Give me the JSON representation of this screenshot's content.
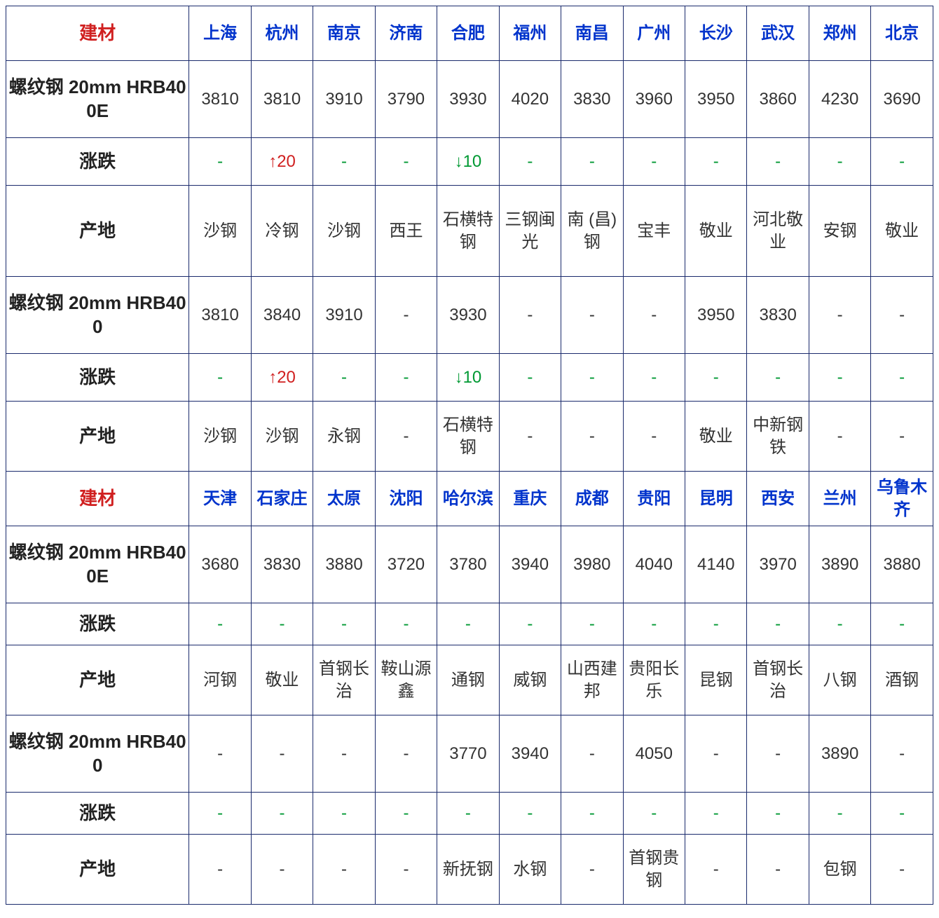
{
  "colors": {
    "border": "#1a2a6c",
    "header_label": "#d02020",
    "city": "#0033cc",
    "text": "#333333",
    "up": "#d02020",
    "down": "#009933",
    "dash": "#009933",
    "background": "#ffffff"
  },
  "header_label": "建材",
  "section1": {
    "cities": [
      "上海",
      "杭州",
      "南京",
      "济南",
      "合肥",
      "福州",
      "南昌",
      "广州",
      "长沙",
      "武汉",
      "郑州",
      "北京"
    ],
    "product1_label": "螺纹钢 20mm HRB400E",
    "product1_prices": [
      "3810",
      "3810",
      "3910",
      "3790",
      "3930",
      "4020",
      "3830",
      "3960",
      "3950",
      "3860",
      "4230",
      "3690"
    ],
    "change_label": "涨跌",
    "product1_changes": [
      {
        "t": "-",
        "c": "dash"
      },
      {
        "t": "↑20",
        "c": "up"
      },
      {
        "t": "-",
        "c": "dash"
      },
      {
        "t": "-",
        "c": "dash"
      },
      {
        "t": "↓10",
        "c": "down"
      },
      {
        "t": "-",
        "c": "dash"
      },
      {
        "t": "-",
        "c": "dash"
      },
      {
        "t": "-",
        "c": "dash"
      },
      {
        "t": "-",
        "c": "dash"
      },
      {
        "t": "-",
        "c": "dash"
      },
      {
        "t": "-",
        "c": "dash"
      },
      {
        "t": "-",
        "c": "dash"
      }
    ],
    "origin_label": "产地",
    "product1_origins": [
      "沙钢",
      "冷钢",
      "沙钢",
      "西王",
      "石横特钢",
      "三钢闽光",
      "南 (昌) 钢",
      "宝丰",
      "敬业",
      "河北敬业",
      "安钢",
      "敬业"
    ],
    "product2_label": "螺纹钢 20mm HRB400",
    "product2_prices": [
      "3810",
      "3840",
      "3910",
      "-",
      "3930",
      "-",
      "-",
      "-",
      "3950",
      "3830",
      "-",
      "-"
    ],
    "product2_changes": [
      {
        "t": "-",
        "c": "dash"
      },
      {
        "t": "↑20",
        "c": "up"
      },
      {
        "t": "-",
        "c": "dash"
      },
      {
        "t": "-",
        "c": "dash"
      },
      {
        "t": "↓10",
        "c": "down"
      },
      {
        "t": "-",
        "c": "dash"
      },
      {
        "t": "-",
        "c": "dash"
      },
      {
        "t": "-",
        "c": "dash"
      },
      {
        "t": "-",
        "c": "dash"
      },
      {
        "t": "-",
        "c": "dash"
      },
      {
        "t": "-",
        "c": "dash"
      },
      {
        "t": "-",
        "c": "dash"
      }
    ],
    "product2_origins": [
      "沙钢",
      "沙钢",
      "永钢",
      "-",
      "石横特钢",
      "-",
      "-",
      "-",
      "敬业",
      "中新钢铁",
      "-",
      "-"
    ]
  },
  "section2": {
    "cities": [
      "天津",
      "石家庄",
      "太原",
      "沈阳",
      "哈尔滨",
      "重庆",
      "成都",
      "贵阳",
      "昆明",
      "西安",
      "兰州",
      "乌鲁木齐"
    ],
    "product1_label": "螺纹钢 20mm HRB400E",
    "product1_prices": [
      "3680",
      "3830",
      "3880",
      "3720",
      "3780",
      "3940",
      "3980",
      "4040",
      "4140",
      "3970",
      "3890",
      "3880"
    ],
    "change_label": "涨跌",
    "product1_changes": [
      {
        "t": "-",
        "c": "dash"
      },
      {
        "t": "-",
        "c": "dash"
      },
      {
        "t": "-",
        "c": "dash"
      },
      {
        "t": "-",
        "c": "dash"
      },
      {
        "t": "-",
        "c": "dash"
      },
      {
        "t": "-",
        "c": "dash"
      },
      {
        "t": "-",
        "c": "dash"
      },
      {
        "t": "-",
        "c": "dash"
      },
      {
        "t": "-",
        "c": "dash"
      },
      {
        "t": "-",
        "c": "dash"
      },
      {
        "t": "-",
        "c": "dash"
      },
      {
        "t": "-",
        "c": "dash"
      }
    ],
    "origin_label": "产地",
    "product1_origins": [
      "河钢",
      "敬业",
      "首钢长治",
      "鞍山源鑫",
      "通钢",
      "威钢",
      "山西建邦",
      "贵阳长乐",
      "昆钢",
      "首钢长治",
      "八钢",
      "酒钢"
    ],
    "product2_label": "螺纹钢 20mm HRB400",
    "product2_prices": [
      "-",
      "-",
      "-",
      "-",
      "3770",
      "3940",
      "-",
      "4050",
      "-",
      "-",
      "3890",
      "-"
    ],
    "product2_changes": [
      {
        "t": "-",
        "c": "dash"
      },
      {
        "t": "-",
        "c": "dash"
      },
      {
        "t": "-",
        "c": "dash"
      },
      {
        "t": "-",
        "c": "dash"
      },
      {
        "t": "-",
        "c": "dash"
      },
      {
        "t": "-",
        "c": "dash"
      },
      {
        "t": "-",
        "c": "dash"
      },
      {
        "t": "-",
        "c": "dash"
      },
      {
        "t": "-",
        "c": "dash"
      },
      {
        "t": "-",
        "c": "dash"
      },
      {
        "t": "-",
        "c": "dash"
      },
      {
        "t": "-",
        "c": "dash"
      }
    ],
    "product2_origins": [
      "-",
      "-",
      "-",
      "-",
      "新抚钢",
      "水钢",
      "-",
      "首钢贵钢",
      "-",
      "-",
      "包钢",
      "-"
    ]
  }
}
